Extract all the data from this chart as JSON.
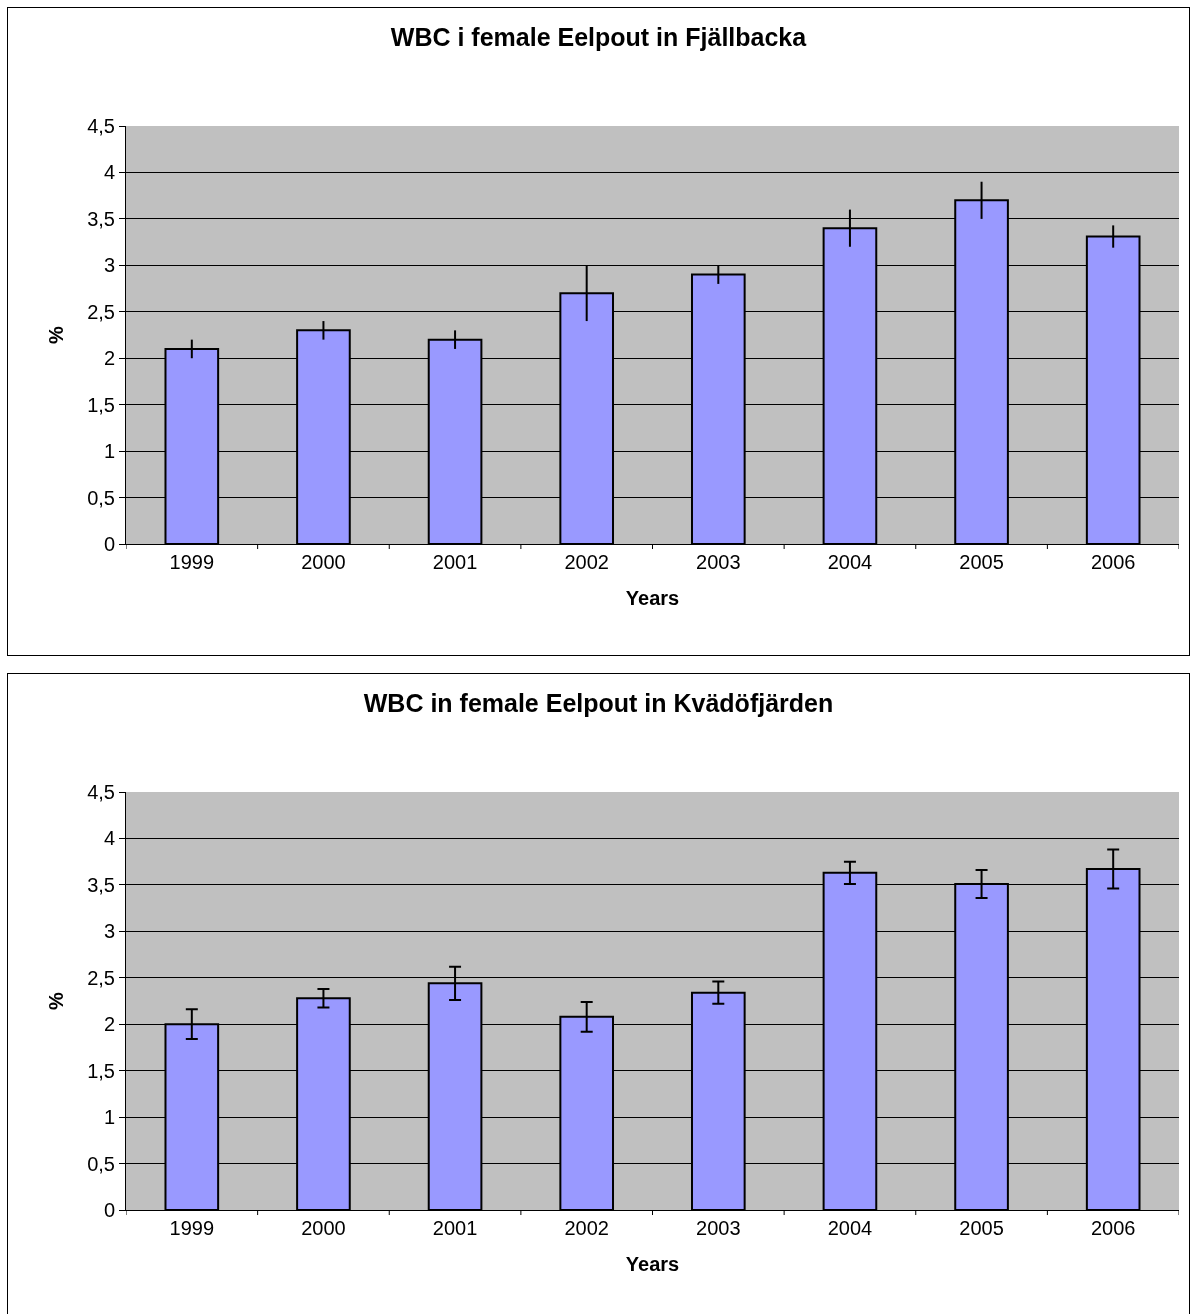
{
  "chart_data": [
    {
      "type": "bar",
      "title": "WBC i female Eelpout in Fjällbacka",
      "xlabel": "Years",
      "ylabel": "%",
      "categories": [
        "1999",
        "2000",
        "2001",
        "2002",
        "2003",
        "2004",
        "2005",
        "2006"
      ],
      "values": [
        2.1,
        2.3,
        2.2,
        2.7,
        2.9,
        3.4,
        3.7,
        3.31
      ],
      "errors": [
        0.1,
        0.1,
        0.1,
        0.3,
        0.1,
        0.2,
        0.2,
        0.12
      ],
      "color": "#9999ff",
      "ylim": [
        0,
        4.5
      ],
      "yticks": [
        0,
        {
          "value": 0.5,
          "label": "0,5"
        },
        1,
        {
          "value": 1.5,
          "label": "1,5"
        },
        2,
        {
          "value": 2.5,
          "label": "2,5"
        },
        3,
        {
          "value": 3.5,
          "label": "3,5"
        },
        4,
        {
          "value": 4.5,
          "label": "4,5"
        }
      ],
      "grid": "y"
    },
    {
      "type": "bar",
      "title": "WBC in female Eelpout in Kvädöfjärden",
      "xlabel": "Years",
      "ylabel": "%",
      "categories": [
        "1999",
        "2000",
        "2001",
        "2002",
        "2003",
        "2004",
        "2005",
        "2006"
      ],
      "values": [
        2.0,
        2.28,
        2.44,
        2.08,
        2.34,
        3.63,
        3.51,
        3.67
      ],
      "errors": [
        0.16,
        0.1,
        0.18,
        0.16,
        0.12,
        0.12,
        0.15,
        0.21
      ],
      "color": "#9999ff",
      "ylim": [
        0,
        4.5
      ],
      "yticks": [
        0,
        {
          "value": 0.5,
          "label": "0,5"
        },
        1,
        {
          "value": 1.5,
          "label": "1,5"
        },
        2,
        {
          "value": 2.5,
          "label": "2,5"
        },
        3,
        {
          "value": 3.5,
          "label": "3,5"
        },
        4,
        {
          "value": 4.5,
          "label": "4,5"
        }
      ],
      "grid": "y"
    }
  ]
}
